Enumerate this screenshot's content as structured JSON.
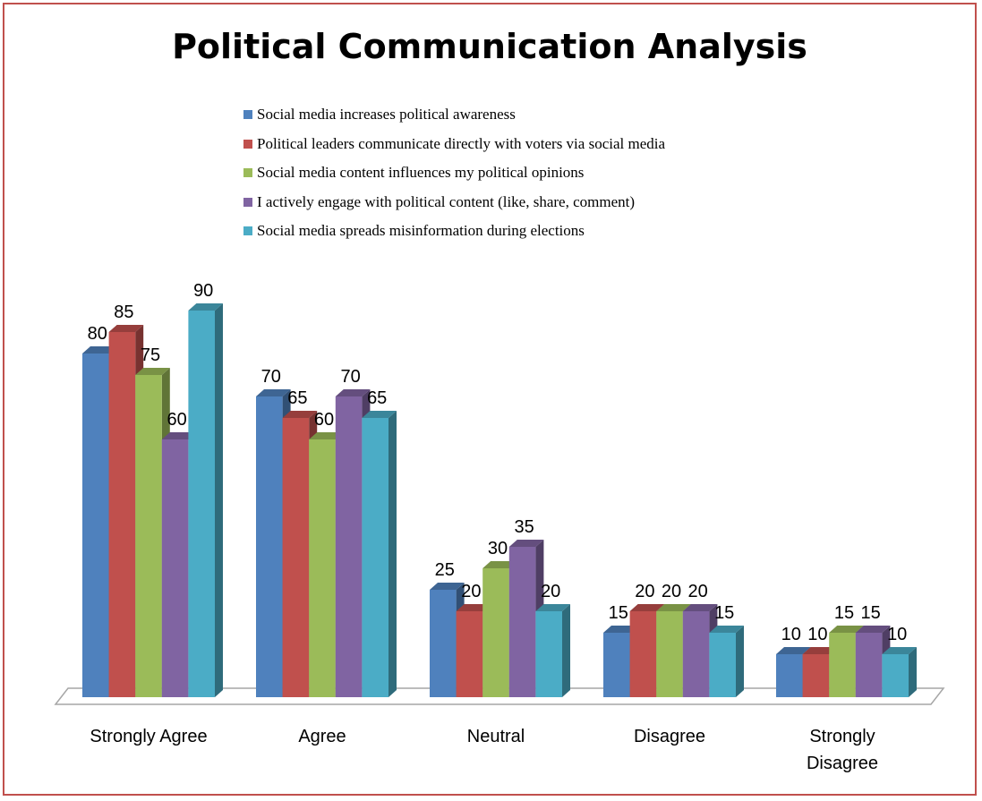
{
  "chart_data": {
    "type": "bar",
    "title": "Political Communication Analysis",
    "xlabel": "",
    "ylabel": "",
    "ylim": [
      0,
      90
    ],
    "grid": false,
    "legend_position": "top",
    "categories": [
      "Strongly Agree",
      "Agree",
      "Neutral",
      "Disagree",
      "Strongly Disagree"
    ],
    "series": [
      {
        "name": "Social media increases political awareness",
        "color": "#4f81bd",
        "values": [
          80,
          70,
          25,
          15,
          10
        ]
      },
      {
        "name": "Political leaders communicate directly with voters via social media",
        "color": "#c0504d",
        "values": [
          85,
          65,
          20,
          20,
          10
        ]
      },
      {
        "name": "Social media content influences my political opinions",
        "color": "#9bbb59",
        "values": [
          75,
          60,
          30,
          20,
          15
        ]
      },
      {
        "name": "I actively engage with political content (like, share, comment)",
        "color": "#8064a2",
        "values": [
          60,
          70,
          35,
          20,
          15
        ]
      },
      {
        "name": "Social media spreads misinformation during elections",
        "color": "#4bacc6",
        "values": [
          90,
          65,
          20,
          15,
          10
        ]
      }
    ]
  }
}
